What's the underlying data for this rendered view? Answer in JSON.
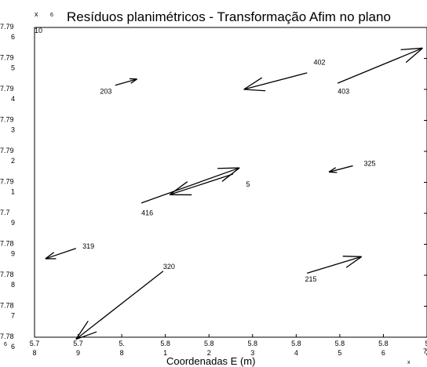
{
  "chart_data": {
    "type": "quiver",
    "title": "Resíduos planimétricos - Transformação Afim no plano",
    "title_prefix": "6",
    "xlabel": "Coordenadas E (m)",
    "x_multiplier": "x",
    "x_multiplier_exp": "7",
    "y_multiplier": "x",
    "y_multiplier_exp": "10",
    "xlim": [
      5.78,
      5.87
    ],
    "ylim": [
      7.78,
      7.795
    ],
    "x_ticks": [
      {
        "v": 5.78,
        "top": "5.7",
        "bot": "8"
      },
      {
        "v": 5.79,
        "top": "5.7",
        "bot": "9"
      },
      {
        "v": 5.8,
        "top": "5.",
        "bot": "8"
      },
      {
        "v": 5.81,
        "top": "5.8",
        "bot": "1"
      },
      {
        "v": 5.82,
        "top": "5.8",
        "bot": "2"
      },
      {
        "v": 5.83,
        "top": "5.8",
        "bot": "3"
      },
      {
        "v": 5.84,
        "top": "5.8",
        "bot": "4"
      },
      {
        "v": 5.85,
        "top": "5.8",
        "bot": "5"
      },
      {
        "v": 5.86,
        "top": "5.8",
        "bot": "6"
      },
      {
        "v": 5.87,
        "top": "5",
        "bot": "7"
      }
    ],
    "x_tick_first_prefix": "6",
    "y_ticks": [
      {
        "v": 7.795,
        "top": "7.79",
        "bot": "6"
      },
      {
        "v": 7.7935,
        "top": "7.79",
        "bot": "5"
      },
      {
        "v": 7.792,
        "top": "7.79",
        "bot": "4"
      },
      {
        "v": 7.7905,
        "top": "7.79",
        "bot": "3"
      },
      {
        "v": 7.789,
        "top": "7.79",
        "bot": "2"
      },
      {
        "v": 7.7875,
        "top": "7.79",
        "bot": "1"
      },
      {
        "v": 7.786,
        "top": "7.7",
        "bot": "9"
      },
      {
        "v": 7.7845,
        "top": "7.78",
        "bot": "9"
      },
      {
        "v": 7.783,
        "top": "7.78",
        "bot": "8"
      },
      {
        "v": 7.7815,
        "top": "7.78",
        "bot": "7"
      },
      {
        "v": 7.78,
        "top": "7.78",
        "bot": "6"
      }
    ],
    "vectors": [
      {
        "id": "203",
        "x": 5.7985,
        "y": 7.7922,
        "dx": 0.005,
        "dy": 0.0003,
        "lx": 5.795,
        "ly": 7.7918
      },
      {
        "id": "402",
        "x": 5.8425,
        "y": 7.7928,
        "dx": -0.0145,
        "dy": -0.0008,
        "lx": 5.844,
        "ly": 7.7932
      },
      {
        "id": "403",
        "x": 5.8495,
        "y": 7.7923,
        "dx": 0.0195,
        "dy": 0.0017,
        "lx": 5.8495,
        "ly": 7.7918
      },
      {
        "id": "5",
        "x": 5.8255,
        "y": 7.7879,
        "dx": -0.0145,
        "dy": -0.001,
        "lx": 5.8285,
        "ly": 7.7873
      },
      {
        "id": "416",
        "x": 5.8045,
        "y": 7.7865,
        "dx": 0.0225,
        "dy": 0.0017,
        "lx": 5.8045,
        "ly": 7.7859
      },
      {
        "id": "325",
        "x": 5.853,
        "y": 7.7883,
        "dx": -0.0055,
        "dy": -0.0003,
        "lx": 5.8555,
        "ly": 7.7883
      },
      {
        "id": "319",
        "x": 5.7895,
        "y": 7.7843,
        "dx": -0.007,
        "dy": -0.0005,
        "lx": 5.791,
        "ly": 7.7843
      },
      {
        "id": "320",
        "x": 5.8095,
        "y": 7.7832,
        "dx": -0.02,
        "dy": -0.0033,
        "lx": 5.8095,
        "ly": 7.7833
      },
      {
        "id": "215",
        "x": 5.8425,
        "y": 7.7831,
        "dx": 0.0125,
        "dy": 0.0008,
        "lx": 5.842,
        "ly": 7.7827
      }
    ],
    "grid": false,
    "color": "#000000"
  }
}
